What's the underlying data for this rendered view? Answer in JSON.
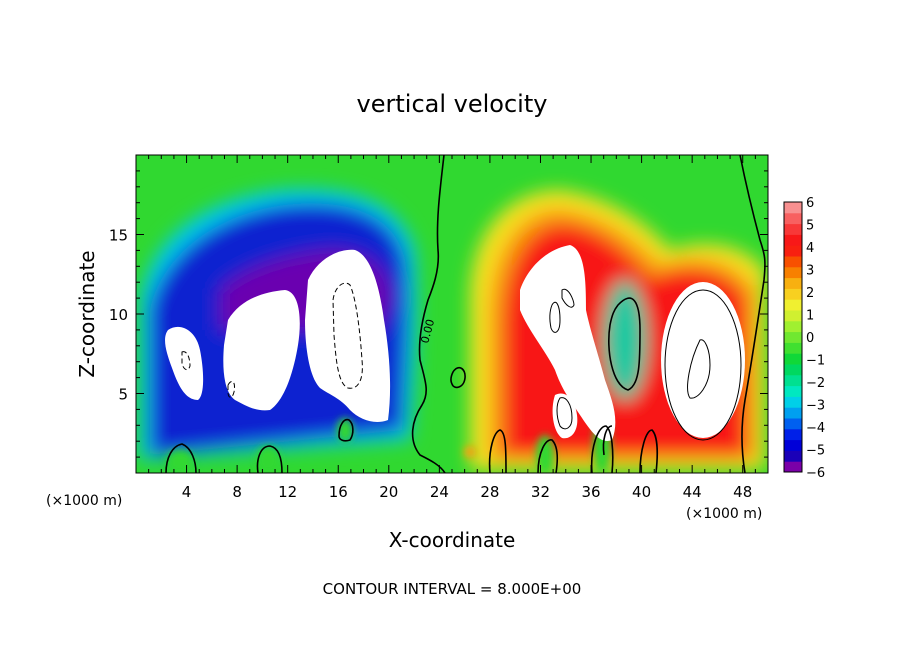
{
  "chart_data": {
    "type": "heatmap",
    "title": "vertical velocity",
    "xlabel": "X-coordinate",
    "ylabel": "Z-coordinate",
    "x_unit_left": "(×1000 m)",
    "x_unit_right": "(×1000 m)",
    "footer": "CONTOUR INTERVAL = 8.000E+00",
    "xlim": [
      0,
      50
    ],
    "ylim": [
      0,
      20
    ],
    "x_ticks": [
      4,
      8,
      12,
      16,
      20,
      24,
      28,
      32,
      36,
      40,
      44,
      48
    ],
    "y_ticks": [
      5,
      10,
      15
    ],
    "contour_label": "0.00",
    "colorbar": {
      "min": -6,
      "max": 6,
      "step": 0.5,
      "tick_labels": [
        "6",
        "5",
        "4",
        "3",
        "2",
        "1",
        "0",
        "−1",
        "−2",
        "−3",
        "−4",
        "−5",
        "−6"
      ],
      "tick_values": [
        6,
        5,
        4,
        3,
        2,
        1,
        0,
        -1,
        -2,
        -3,
        -4,
        -5,
        -6
      ],
      "colors": [
        "#7a00a8",
        "#1a00b8",
        "#0000d8",
        "#0020e8",
        "#0060f0",
        "#00a0f0",
        "#00d0e8",
        "#00e8c0",
        "#00e090",
        "#00d860",
        "#10d838",
        "#40e030",
        "#70e830",
        "#a0f030",
        "#d0f030",
        "#f0f030",
        "#f8d020",
        "#f8b010",
        "#f88000",
        "#f85000",
        "#f82010",
        "#f81818",
        "#f83838",
        "#f86060",
        "#f89090"
      ]
    },
    "regions": [
      {
        "name": "updraft-right-tall",
        "value": 5,
        "center": [
          34,
          10
        ],
        "radii": [
          5,
          6
        ]
      },
      {
        "name": "updraft-right-cell",
        "value": 6,
        "center": [
          44.5,
          7.5
        ],
        "radii": [
          4.5,
          5.5
        ]
      },
      {
        "name": "downdraft-left",
        "value": -6,
        "center": [
          11.5,
          9
        ],
        "radii": [
          10.5,
          9
        ]
      },
      {
        "name": "small-updraft-37",
        "value": -1.5,
        "center": [
          38,
          8.5
        ],
        "radii": [
          1.2,
          2.5
        ]
      }
    ]
  }
}
